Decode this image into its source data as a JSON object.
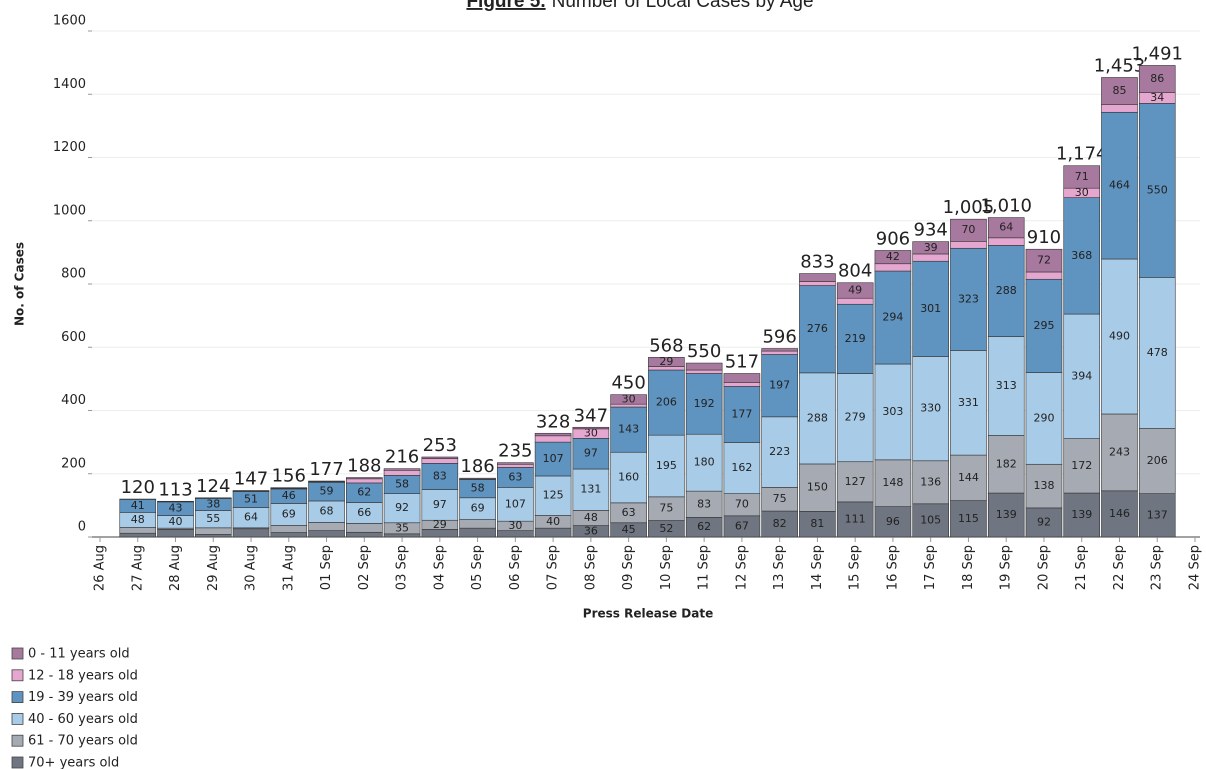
{
  "chart_data": {
    "type": "stacked_bar",
    "title_label": "Figure 5.",
    "title": "Number of Local Cases by Age",
    "y_label": "No. of Cases",
    "x_label": "Press Release Date",
    "categories": [
      "26 Aug",
      "27 Aug",
      "28 Aug",
      "29 Aug",
      "30 Aug",
      "31 Aug",
      "01 Sep",
      "02 Sep",
      "03 Sep",
      "04 Sep",
      "05 Sep",
      "06 Sep",
      "07 Sep",
      "08 Sep",
      "09 Sep",
      "10 Sep",
      "11 Sep",
      "12 Sep",
      "13 Sep",
      "14 Sep",
      "15 Sep",
      "16 Sep",
      "17 Sep",
      "18 Sep",
      "19 Sep",
      "20 Sep",
      "21 Sep",
      "22 Sep",
      "23 Sep",
      "24 Sep"
    ],
    "series": [
      {
        "name": "0 - 11 years old",
        "color": "#a7799f",
        "values": [
          null,
          1,
          1,
          1,
          2,
          2,
          2,
          4,
          5,
          5,
          3,
          5,
          8,
          5,
          30,
          29,
          22,
          28,
          8,
          25,
          49,
          42,
          39,
          70,
          64,
          72,
          71,
          85,
          86,
          null
        ]
      },
      {
        "name": "12 - 18 years old",
        "color": "#e5a7d0",
        "values": [
          null,
          0,
          1,
          1,
          1,
          2,
          2,
          13,
          16,
          15,
          1,
          10,
          20,
          30,
          9,
          11,
          11,
          13,
          11,
          13,
          19,
          23,
          23,
          22,
          24,
          23,
          30,
          25,
          34,
          null
        ]
      },
      {
        "name": "19 - 39 years old",
        "color": "#5f93c0",
        "values": [
          null,
          41,
          43,
          38,
          51,
          46,
          59,
          62,
          58,
          83,
          58,
          63,
          107,
          97,
          143,
          206,
          192,
          177,
          197,
          276,
          219,
          294,
          301,
          323,
          288,
          295,
          368,
          464,
          550,
          null
        ]
      },
      {
        "name": "40 - 60 years old",
        "color": "#a8cce8",
        "values": [
          null,
          48,
          40,
          55,
          64,
          69,
          68,
          66,
          92,
          97,
          69,
          107,
          125,
          131,
          160,
          195,
          180,
          162,
          223,
          288,
          279,
          303,
          330,
          331,
          313,
          290,
          394,
          490,
          478,
          null
        ]
      },
      {
        "name": "61 - 70 years old",
        "color": "#a6aab3",
        "values": [
          null,
          18,
          4,
          21,
          3,
          23,
          26,
          28,
          35,
          29,
          27,
          30,
          40,
          48,
          63,
          75,
          83,
          70,
          75,
          150,
          127,
          148,
          136,
          144,
          182,
          138,
          172,
          243,
          206,
          null
        ]
      },
      {
        "name": "70+ years old",
        "color": "#6f7581",
        "values": [
          null,
          12,
          24,
          8,
          26,
          14,
          20,
          15,
          10,
          24,
          28,
          20,
          28,
          36,
          45,
          52,
          62,
          67,
          82,
          81,
          111,
          96,
          105,
          115,
          139,
          92,
          139,
          146,
          137,
          null
        ]
      }
    ],
    "totals": [
      null,
      120,
      113,
      124,
      147,
      156,
      177,
      188,
      216,
      253,
      186,
      235,
      328,
      347,
      450,
      568,
      550,
      517,
      596,
      833,
      804,
      906,
      934,
      1005,
      1010,
      910,
      1174,
      1453,
      1491,
      null
    ],
    "total_labels": [
      null,
      "120",
      "113",
      "124",
      "147",
      "156",
      "177",
      "188",
      "216",
      "253",
      "186",
      "235",
      "328",
      "347",
      "450",
      "568",
      "550",
      "517",
      "596",
      "833",
      "804",
      "906",
      "934",
      "1,005",
      "1,010",
      "910",
      "1,174",
      "1,453",
      "1,491",
      null
    ],
    "ylim": [
      0,
      1600
    ],
    "yticks": [
      0,
      200,
      400,
      600,
      800,
      1000,
      1200,
      1400,
      1600
    ],
    "grid": true
  }
}
